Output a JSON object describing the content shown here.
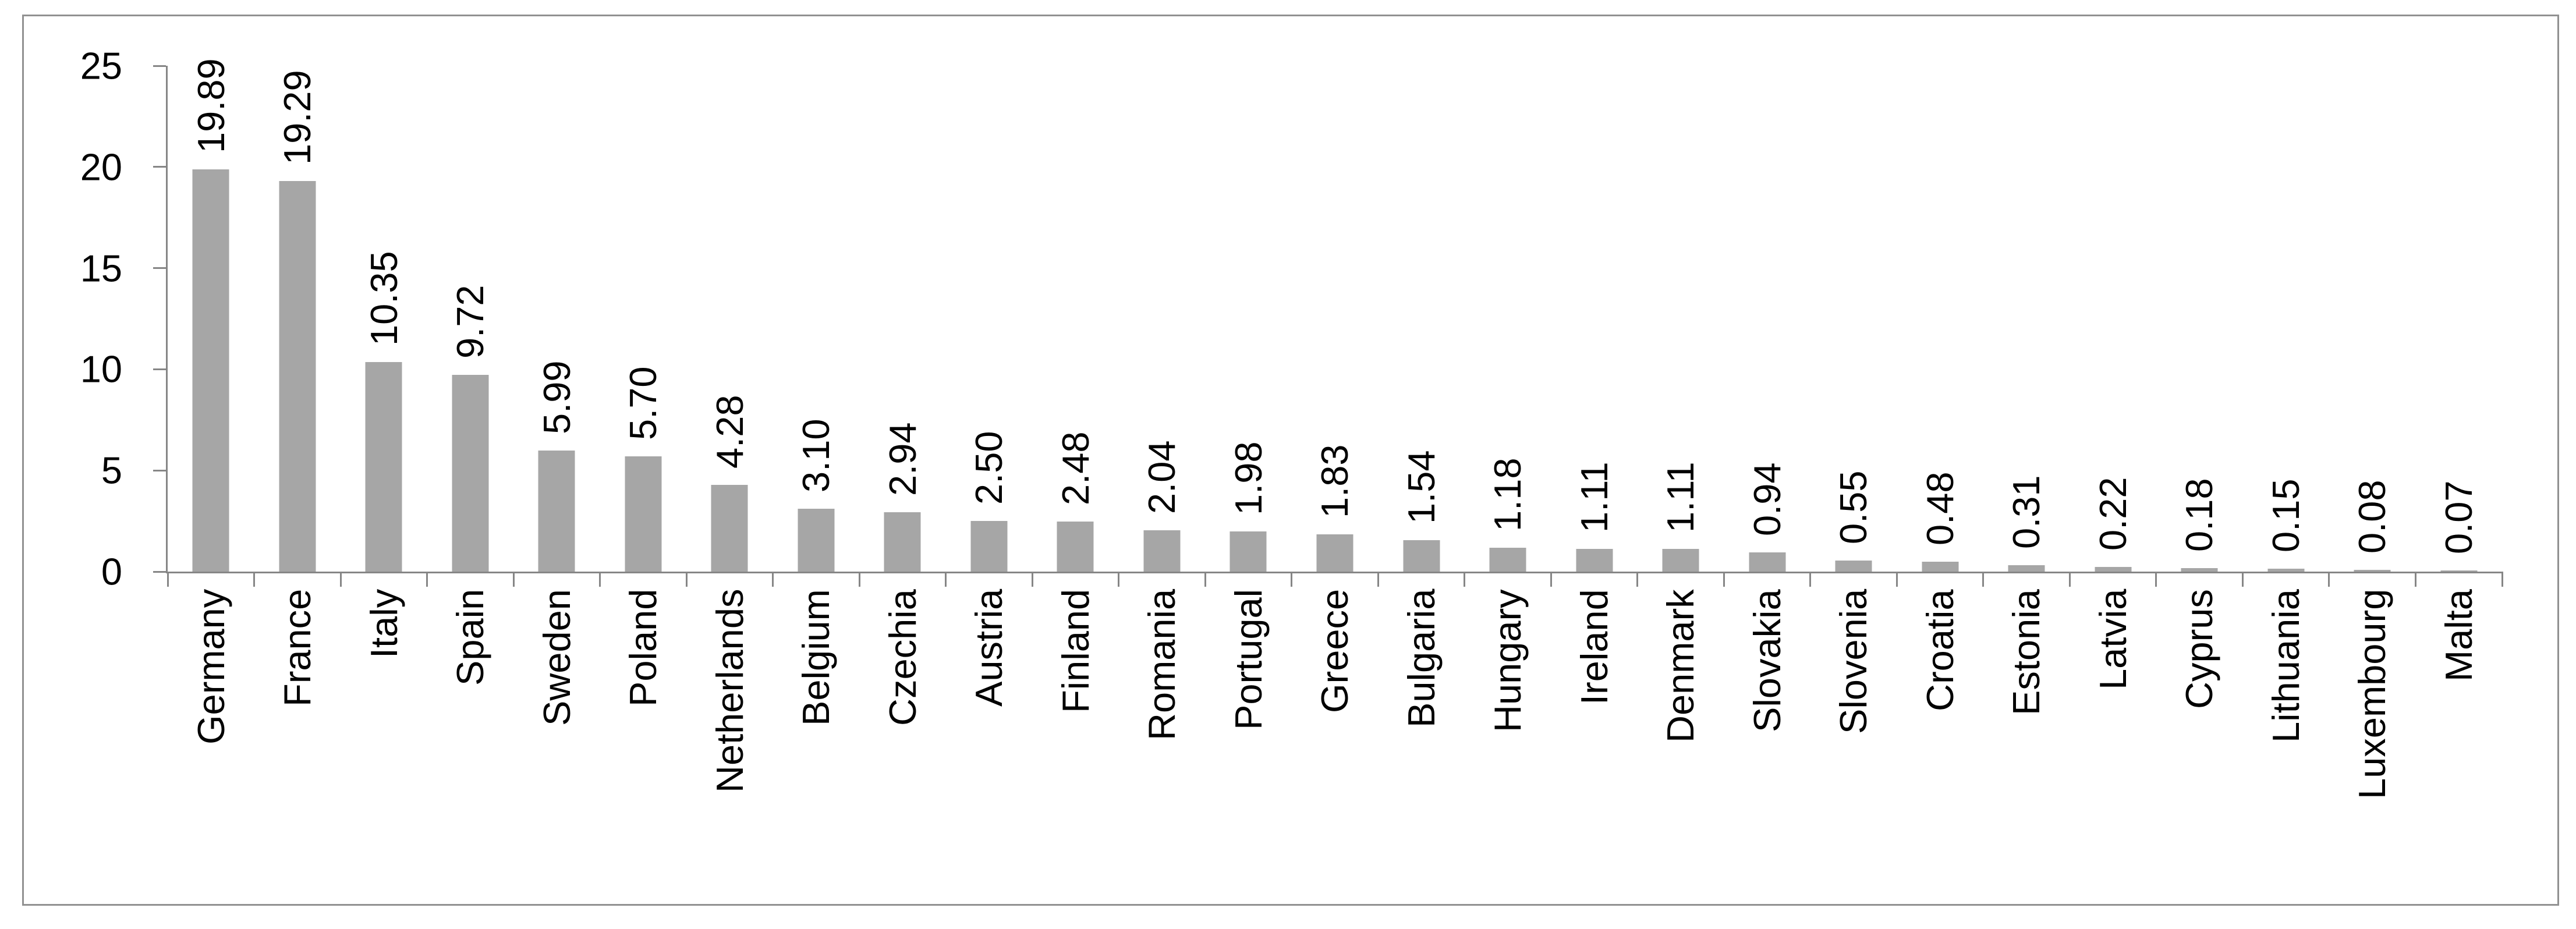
{
  "figure": {
    "background": "#ffffff",
    "frame_border_color": "#919191"
  },
  "chart_data": {
    "type": "bar",
    "title": "",
    "xlabel": "",
    "ylabel": "",
    "categories": [
      "Germany",
      "France",
      "Italy",
      "Spain",
      "Sweden",
      "Poland",
      "Netherlands",
      "Belgium",
      "Czechia",
      "Austria",
      "Finland",
      "Romania",
      "Portugal",
      "Greece",
      "Bulgaria",
      "Hungary",
      "Ireland",
      "Denmark",
      "Slovakia",
      "Slovenia",
      "Croatia",
      "Estonia",
      "Latvia",
      "Cyprus",
      "Lithuania",
      "Luxembourg",
      "Malta"
    ],
    "values": [
      19.89,
      19.29,
      10.35,
      9.72,
      5.99,
      5.7,
      4.28,
      3.1,
      2.94,
      2.5,
      2.48,
      2.04,
      1.98,
      1.83,
      1.54,
      1.18,
      1.11,
      1.11,
      0.94,
      0.55,
      0.48,
      0.31,
      0.22,
      0.18,
      0.15,
      0.08,
      0.07
    ],
    "value_labels": [
      "19.89",
      "19.29",
      "10.35",
      "9.72",
      "5.99",
      "5.70",
      "4.28",
      "3.10",
      "2.94",
      "2.50",
      "2.48",
      "2.04",
      "1.98",
      "1.83",
      "1.54",
      "1.18",
      "1.11",
      "1.11",
      "0.94",
      "0.55",
      "0.48",
      "0.31",
      "0.22",
      "0.18",
      "0.15",
      "0.08",
      "0.07"
    ],
    "y_ticks": [
      0,
      5,
      10,
      15,
      20,
      25
    ],
    "ylim": [
      0,
      25
    ],
    "grid": false,
    "legend": "none",
    "bar_color": "#a6a6a6",
    "axis_color": "#868686",
    "text_color": "#000000",
    "value_label_rotation": -90,
    "category_label_rotation": -90
  }
}
